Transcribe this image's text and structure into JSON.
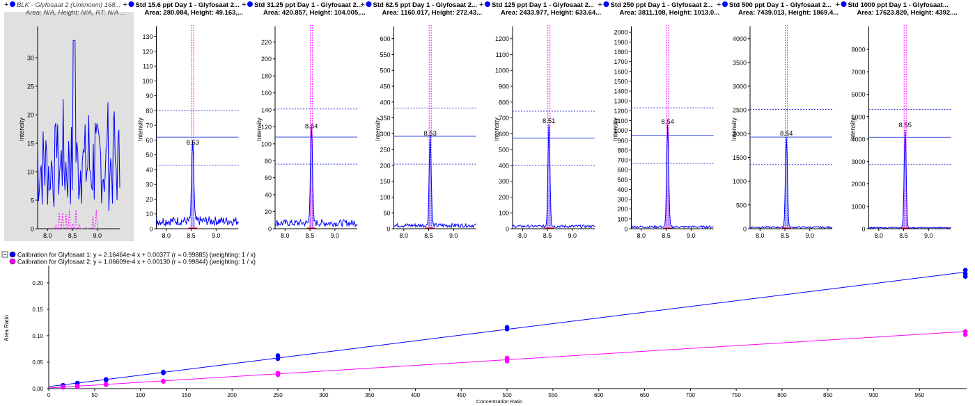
{
  "colors": {
    "blue": "#0000ff",
    "magenta": "#ff00ff",
    "blk_bg": "#e0e0e0",
    "dashed_line": "#3344dd",
    "red": "#ff0000"
  },
  "panels": [
    {
      "title": "BLK - Glyfosaat 2 (Unknown) 168...",
      "subtitle": "Area: N/A, Height: N/A, RT: N/A ...",
      "blank": true,
      "ylabel": "Intensity",
      "yticks": [
        0,
        5,
        10,
        15,
        20,
        25,
        30
      ],
      "ymax": 35,
      "peak_label": "",
      "xticks": [
        "8.0",
        "8.5",
        "9.0"
      ]
    },
    {
      "title": "Std 15.6 ppt Day 1 - Glyfosaat 2...",
      "subtitle": "Area: 280.084, Height: 49.163,...",
      "blank": false,
      "ylabel": "Intensity",
      "yticks": [
        0,
        10,
        20,
        30,
        40,
        50,
        60,
        70,
        80,
        90,
        100,
        110,
        120,
        130
      ],
      "ymax": 135,
      "peak_label": "8.53",
      "peak_height": 55,
      "line_solid": 62,
      "line_upper": 80,
      "line_lower": 43,
      "noise": 7,
      "xticks": [
        "8.0",
        "8.5",
        "9.0"
      ]
    },
    {
      "title": "Std 31.25 ppt Day 1 - Glyfosaat 2...",
      "subtitle": "Area: 420.857, Height: 104.005,...",
      "blank": false,
      "ylabel": "Intensity",
      "yticks": [
        0,
        20,
        40,
        60,
        80,
        100,
        120,
        140,
        160,
        180,
        200,
        220
      ],
      "ymax": 235,
      "peak_label": "8.54",
      "peak_height": 115,
      "line_solid": 108,
      "line_upper": 141,
      "line_lower": 76,
      "noise": 9,
      "xticks": [
        "8.0",
        "8.5",
        "9.0"
      ]
    },
    {
      "title": "Std 62.5 ppt Day 1 - Glyfosaat 2...",
      "subtitle": "Area: 1160.017, Height: 272.43...",
      "blank": false,
      "ylabel": "Intensity",
      "yticks": [
        0,
        50,
        100,
        150,
        200,
        250,
        300,
        350,
        400,
        450,
        500,
        550,
        600
      ],
      "ymax": 630,
      "peak_label": "8.53",
      "peak_height": 285,
      "line_solid": 292,
      "line_upper": 381,
      "line_lower": 204,
      "noise": 14,
      "xticks": [
        "8.0",
        "8.5",
        "9.0"
      ]
    },
    {
      "title": "Std 125 ppt Day 1 - Glyfosaat 2...",
      "subtitle": "Area: 2433.977, Height: 633.64...",
      "blank": false,
      "ylabel": "Intensity",
      "yticks": [
        0,
        100,
        200,
        300,
        400,
        500,
        600,
        700,
        800,
        900,
        1000,
        1100,
        1200
      ],
      "ymax": 1260,
      "peak_label": "8.51",
      "peak_height": 650,
      "line_solid": 572,
      "line_upper": 742,
      "line_lower": 400,
      "noise": 20,
      "xticks": [
        "8.0",
        "8.5",
        "9.0"
      ]
    },
    {
      "title": "Std 250 ppt Day 1 - Glyfosaat 2...",
      "subtitle": "Area: 3811.108, Height: 1013.0...",
      "blank": false,
      "ylabel": "Intensity",
      "yticks": [
        0,
        100,
        200,
        300,
        400,
        500,
        600,
        700,
        800,
        900,
        1000,
        1100,
        1200,
        1300,
        1400,
        1500,
        1600,
        1700,
        1800,
        1900,
        2000
      ],
      "ymax": 2030,
      "peak_label": "8.54",
      "peak_height": 1040,
      "line_solid": 950,
      "line_upper": 1230,
      "line_lower": 665,
      "noise": 25,
      "xticks": [
        "8.0",
        "8.5",
        "9.0"
      ]
    },
    {
      "title": "Std 500 ppt Day 1 - Glyfosaat 2...",
      "subtitle": "Area: 7439.013, Height: 1869.4...",
      "blank": false,
      "ylabel": "Intensity",
      "yticks": [
        0,
        500,
        1000,
        1500,
        2000,
        2500,
        3000,
        3500,
        4000
      ],
      "ymax": 4200,
      "peak_label": "8.54",
      "peak_height": 1900,
      "line_solid": 1930,
      "line_upper": 2510,
      "line_lower": 1350,
      "noise": 40,
      "xticks": [
        "8.0",
        "8.5",
        "9.0"
      ]
    },
    {
      "title": "Std 1000 ppt Day 1 - Glyfosaat...",
      "subtitle": "Area: 17623.820, Height: 4392....",
      "blank": false,
      "ylabel": "Intensity",
      "yticks": [
        1000,
        2000,
        3000,
        4000,
        5000,
        6000,
        7000,
        8000
      ],
      "ymax": 8900,
      "peak_label": "8.55",
      "peak_height": 4400,
      "line_solid": 4080,
      "line_upper": 5320,
      "line_lower": 2860,
      "noise": 60,
      "xticks": [
        "8.0",
        "8.5",
        "9.0"
      ]
    }
  ],
  "legend": [
    {
      "text": "Calibration for Glyfosaat 1: y = 2.16464e-4 x + 0.00377 (r = 0.99885)  (weighting: 1 / x)",
      "color": "#0000ff"
    },
    {
      "text": "Calibration for Glyfosaat 2: y = 1.06609e-4 x + 0.00130 (r = 0.99844)  (weighting: 1 / x)",
      "color": "#ff00ff"
    }
  ],
  "chart_data": {
    "type": "scatter",
    "xlabel": "Concentration Ratio",
    "ylabel": "Area Ratio",
    "xlim": [
      0,
      1000
    ],
    "ylim": [
      0,
      0.23
    ],
    "xticks": [
      0,
      50,
      100,
      150,
      200,
      250,
      300,
      350,
      400,
      450,
      500,
      550,
      600,
      650,
      700,
      750,
      800,
      850,
      900,
      950
    ],
    "yticks": [
      "0.00",
      "0.05",
      "0.10",
      "0.15",
      "0.20"
    ],
    "series": [
      {
        "name": "Calibration for Glyfosaat 1",
        "color": "#0000ff",
        "intercept": 0.00377,
        "slope": 0.000216464,
        "points": [
          [
            15.6,
            0.0055
          ],
          [
            15.6,
            0.0065
          ],
          [
            31.25,
            0.009
          ],
          [
            31.25,
            0.0105
          ],
          [
            62.5,
            0.016
          ],
          [
            62.5,
            0.0175
          ],
          [
            125,
            0.0295
          ],
          [
            125,
            0.0315
          ],
          [
            250,
            0.0565
          ],
          [
            250,
            0.0625
          ],
          [
            500,
            0.1125
          ],
          [
            500,
            0.116
          ],
          [
            1000,
            0.212
          ],
          [
            1000,
            0.217
          ],
          [
            1000,
            0.224
          ]
        ]
      },
      {
        "name": "Calibration for Glyfosaat 2",
        "color": "#ff00ff",
        "intercept": 0.0013,
        "slope": 0.000106609,
        "points": [
          [
            15.6,
            0.0022
          ],
          [
            15.6,
            0.003
          ],
          [
            31.25,
            0.004
          ],
          [
            31.25,
            0.0048
          ],
          [
            62.5,
            0.0072
          ],
          [
            62.5,
            0.0082
          ],
          [
            125,
            0.0135
          ],
          [
            125,
            0.0145
          ],
          [
            250,
            0.026
          ],
          [
            250,
            0.0295
          ],
          [
            500,
            0.052
          ],
          [
            500,
            0.056
          ],
          [
            500,
            0.058
          ],
          [
            1000,
            0.102
          ],
          [
            1000,
            0.108
          ]
        ]
      }
    ]
  }
}
